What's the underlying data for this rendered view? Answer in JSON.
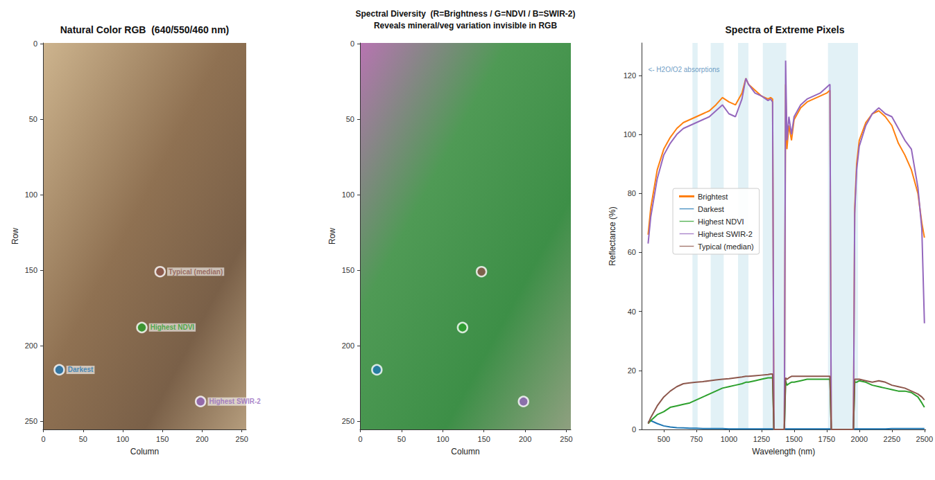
{
  "chart_data": [
    {
      "type": "scatter",
      "title": "Natural Color RGB  (640/550/460 nm)",
      "x_label": "Column",
      "y_label": "Row",
      "xlim": [
        -0.5,
        255.5
      ],
      "ylim": [
        255.5,
        -0.5
      ],
      "xticks": [
        0,
        50,
        100,
        150,
        200,
        250
      ],
      "yticks": [
        0,
        50,
        100,
        150,
        200,
        250
      ],
      "data_labels": true,
      "series": [
        {
          "name": "Typical (median)",
          "color": "#8c564b",
          "x": [
            147
          ],
          "y": [
            151
          ]
        },
        {
          "name": "Highest NDVI",
          "color": "#2ca02c",
          "x": [
            124
          ],
          "y": [
            188
          ]
        },
        {
          "name": "Darkest",
          "color": "#1f77b4",
          "x": [
            20
          ],
          "y": [
            216
          ]
        },
        {
          "name": "Highest SWIR-2",
          "color": "#9467bd",
          "x": [
            198
          ],
          "y": [
            237
          ]
        }
      ]
    },
    {
      "type": "scatter",
      "title": "Spectral Diversity  (R=Brightness / G=NDVI / B=SWIR-2)",
      "subtitle": "Reveals mineral/veg variation invisible in RGB",
      "x_label": "Column",
      "y_label": "Row",
      "xlim": [
        -0.5,
        255.5
      ],
      "ylim": [
        255.5,
        -0.5
      ],
      "xticks": [
        0,
        50,
        100,
        150,
        200,
        250
      ],
      "yticks": [
        0,
        50,
        100,
        150,
        200,
        250
      ],
      "data_labels": false,
      "series": [
        {
          "color": "#8c564b",
          "x": [
            147
          ],
          "y": [
            151
          ]
        },
        {
          "color": "#2ca02c",
          "x": [
            124
          ],
          "y": [
            188
          ]
        },
        {
          "color": "#1f77b4",
          "x": [
            20
          ],
          "y": [
            216
          ]
        },
        {
          "color": "#9467bd",
          "x": [
            198
          ],
          "y": [
            237
          ]
        }
      ]
    },
    {
      "type": "line",
      "title": "Spectra of Extreme Pixels",
      "x_label": "Wavelength (nm)",
      "y_label": "Reflectance (%)",
      "xlim": [
        330,
        2510
      ],
      "ylim": [
        0,
        131
      ],
      "xticks": [
        500,
        750,
        1000,
        1250,
        1500,
        1750,
        2000,
        2250,
        2500
      ],
      "yticks": [
        0,
        20,
        40,
        60,
        80,
        100,
        120
      ],
      "legend": "left",
      "absorption_bands": [
        [
          720,
          760
        ],
        [
          860,
          960
        ],
        [
          1070,
          1150
        ],
        [
          1260,
          1440
        ],
        [
          1760,
          1990
        ]
      ],
      "annotations": [
        {
          "text": "<- H2O/O2 absorptions",
          "x": 380,
          "y": 122,
          "color": "#4682b4"
        }
      ],
      "x": [
        380,
        400,
        450,
        500,
        550,
        600,
        650,
        700,
        750,
        800,
        850,
        900,
        950,
        1000,
        1050,
        1100,
        1130,
        1150,
        1200,
        1250,
        1300,
        1320,
        1335,
        1345,
        1425,
        1435,
        1445,
        1460,
        1480,
        1500,
        1550,
        1600,
        1650,
        1700,
        1750,
        1775,
        1785,
        1955,
        1965,
        1980,
        2000,
        2050,
        2100,
        2150,
        2200,
        2250,
        2300,
        2350,
        2400,
        2450,
        2480,
        2500
      ],
      "series": [
        {
          "name": "Brightest",
          "color": "#ff7f0e",
          "values": [
            66,
            75,
            88,
            95,
            99,
            102,
            104,
            105,
            106,
            107,
            108,
            110,
            112.5,
            111,
            110,
            114,
            119,
            117,
            115,
            113,
            112,
            112.5,
            112,
            0,
            0,
            117,
            95,
            103,
            98,
            105,
            109,
            111,
            112,
            113,
            114,
            115,
            0,
            0,
            75,
            90,
            98,
            104,
            107,
            108,
            106,
            103,
            97,
            93,
            88,
            80,
            70,
            65
          ]
        },
        {
          "name": "Darkest",
          "color": "#1f77b4",
          "values": [
            2.5,
            3,
            2,
            1.2,
            0.8,
            0.6,
            0.5,
            0.4,
            0.4,
            0.3,
            0.3,
            0.3,
            0.3,
            0.2,
            0.2,
            0.2,
            0.2,
            0.2,
            0.2,
            0.2,
            0.2,
            0.2,
            0.2,
            0,
            0,
            0.2,
            0.2,
            0.2,
            0.2,
            0.2,
            0.2,
            0.2,
            0.2,
            0.2,
            0.2,
            0.2,
            0,
            0,
            0.2,
            0.2,
            0.2,
            0.2,
            0.2,
            0.2,
            0.2,
            0.3,
            0.3,
            0.3,
            0.3,
            0.3,
            0.3,
            0.3
          ]
        },
        {
          "name": "Highest NDVI",
          "color": "#2ca02c",
          "values": [
            2,
            3,
            5,
            6,
            7.5,
            8,
            8.5,
            9,
            10,
            11,
            12,
            13,
            14,
            14.5,
            15,
            15.5,
            16,
            16,
            16.5,
            17,
            17.5,
            17.5,
            17.5,
            0,
            0,
            16.5,
            15,
            15.5,
            16,
            16,
            16.5,
            17,
            17,
            17,
            17,
            17,
            0,
            0,
            16,
            16,
            16.5,
            16,
            15,
            14.5,
            14,
            13.5,
            13,
            13,
            12.5,
            11,
            9,
            7.5
          ]
        },
        {
          "name": "Highest SWIR-2",
          "color": "#9467bd",
          "values": [
            63,
            72,
            85,
            93,
            97,
            100,
            102,
            103,
            104,
            105,
            106,
            108,
            110,
            107,
            106,
            112,
            119,
            117,
            114,
            113,
            111.5,
            112,
            111,
            0,
            0,
            125,
            98,
            106,
            100,
            106,
            110,
            112,
            113,
            114,
            116,
            117,
            0,
            0,
            73,
            88,
            96,
            103,
            107,
            109,
            107,
            106,
            102,
            98,
            95,
            82,
            68,
            36
          ]
        },
        {
          "name": "Typical (median)",
          "color": "#8c564b",
          "values": [
            2,
            4,
            8,
            11,
            13,
            14.5,
            15.5,
            15.8,
            16,
            16.2,
            16.5,
            16.8,
            17,
            17.2,
            17.5,
            17.8,
            18,
            18,
            18.2,
            18.4,
            18.6,
            18.8,
            18.8,
            0,
            0,
            17.5,
            17,
            17.5,
            18,
            18,
            18,
            18,
            18,
            18,
            18,
            18,
            0,
            0,
            17,
            17,
            17,
            16.5,
            16,
            16.5,
            16,
            15,
            14.5,
            14,
            13,
            12,
            11,
            10
          ]
        }
      ]
    }
  ]
}
